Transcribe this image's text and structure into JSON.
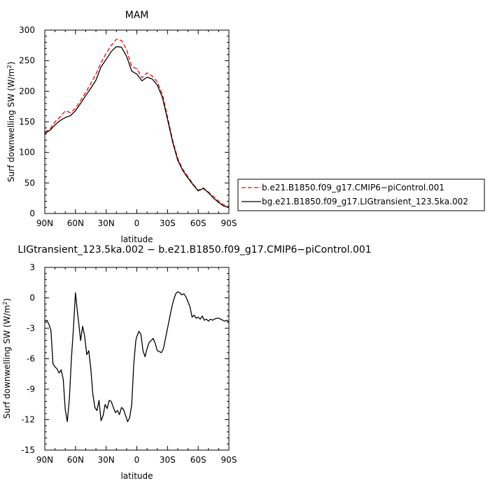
{
  "figure": {
    "title_top": "MAM",
    "title_bottom": "LIGtransient_123.5ka.002 − b.e21.B1850.f09_g17.CMIP6−piControl.001",
    "xlabel": "latitude",
    "ylabel_prefix": "Surf downwelling SW (W/m",
    "ylabel_sup": "2",
    "ylabel_suffix": ")"
  },
  "chart_data": [
    {
      "type": "line",
      "title": "MAM",
      "xlabel": "latitude",
      "ylabel": "Surf downwelling SW (W/m2)",
      "x_ticks": [
        90,
        60,
        30,
        0,
        -30,
        -60,
        -90
      ],
      "x_tick_labels": [
        "90N",
        "60N",
        "30N",
        "0",
        "30S",
        "60S",
        "90S"
      ],
      "xlim": [
        90,
        -90
      ],
      "ylim": [
        0,
        300
      ],
      "y_ticks": [
        0,
        50,
        100,
        150,
        200,
        250,
        300
      ],
      "legend_position": "right",
      "series": [
        {
          "name": "b.e21.B1850.f09_g17.CMIP6−piControl.001",
          "color": "#ff0000",
          "dash": "dashed",
          "x": [
            90,
            85,
            80,
            75,
            70,
            65,
            60,
            55,
            50,
            45,
            40,
            35,
            30,
            25,
            20,
            15,
            10,
            5,
            0,
            -5,
            -10,
            -15,
            -20,
            -25,
            -30,
            -35,
            -40,
            -45,
            -50,
            -55,
            -60,
            -65,
            -70,
            -75,
            -80,
            -85,
            -90
          ],
          "y": [
            133,
            138,
            150,
            158,
            168,
            165,
            172,
            185,
            198,
            213,
            228,
            247,
            262,
            275,
            285,
            283,
            268,
            240,
            237,
            222,
            230,
            225,
            215,
            195,
            158,
            120,
            90,
            72,
            60,
            48,
            38,
            42,
            35,
            28,
            20,
            14,
            12
          ]
        },
        {
          "name": "bg.e21.B1850.f09_g17.LIGtransient_123.5ka.002",
          "color": "#000000",
          "dash": "solid",
          "x": [
            90,
            85,
            80,
            75,
            70,
            65,
            60,
            55,
            50,
            45,
            40,
            35,
            30,
            25,
            20,
            15,
            10,
            5,
            0,
            -5,
            -10,
            -15,
            -20,
            -25,
            -30,
            -35,
            -40,
            -45,
            -50,
            -55,
            -60,
            -65,
            -70,
            -75,
            -80,
            -85,
            -90
          ],
          "y": [
            131,
            136,
            145,
            152,
            157,
            160,
            168,
            180,
            193,
            205,
            218,
            240,
            252,
            265,
            273,
            272,
            257,
            233,
            228,
            217,
            223,
            220,
            210,
            190,
            154,
            117,
            87,
            70,
            58,
            47,
            37,
            41,
            34,
            25,
            18,
            12,
            10
          ]
        }
      ]
    },
    {
      "type": "line",
      "title": "LIGtransient_123.5ka.002 − b.e21.B1850.f09_g17.CMIP6−piControl.001",
      "xlabel": "latitude",
      "ylabel": "Surf downwelling SW (W/m2)",
      "x_ticks": [
        90,
        60,
        30,
        0,
        -30,
        -60,
        -90
      ],
      "x_tick_labels": [
        "90N",
        "60N",
        "30N",
        "0",
        "30S",
        "60S",
        "90S"
      ],
      "xlim": [
        90,
        -90
      ],
      "ylim": [
        -15,
        3
      ],
      "y_ticks": [
        -15,
        -12,
        -9,
        -6,
        -3,
        0,
        3
      ],
      "series": [
        {
          "name": "",
          "color": "#000000",
          "dash": "solid",
          "x": [
            90,
            88,
            86,
            84,
            82,
            80,
            78,
            76,
            74,
            72,
            70,
            68,
            66,
            64,
            62,
            60,
            58,
            57,
            55,
            53,
            51,
            49,
            47,
            45,
            43,
            41,
            39,
            37,
            35,
            33,
            31,
            29,
            27,
            25,
            23,
            21,
            19,
            17,
            15,
            13,
            11,
            9,
            7,
            5,
            3,
            1,
            0,
            -2,
            -4,
            -6,
            -8,
            -10,
            -12,
            -14,
            -16,
            -18,
            -20,
            -22,
            -24,
            -26,
            -28,
            -30,
            -32,
            -34,
            -36,
            -38,
            -40,
            -42,
            -44,
            -46,
            -48,
            -50,
            -52,
            -54,
            -56,
            -58,
            -60,
            -62,
            -64,
            -66,
            -68,
            -70,
            -72,
            -74,
            -76,
            -78,
            -80,
            -82,
            -84,
            -86,
            -88,
            -90
          ],
          "y": [
            -2.3,
            -2.2,
            -2.6,
            -3.2,
            -6.5,
            -6.8,
            -7.0,
            -7.4,
            -7.1,
            -8.0,
            -11.0,
            -12.2,
            -10.0,
            -6.0,
            -3.0,
            0.5,
            -1.5,
            -2.3,
            -4.2,
            -2.8,
            -3.8,
            -5.6,
            -5.2,
            -7.0,
            -9.5,
            -10.8,
            -11.1,
            -10.1,
            -12.1,
            -11.6,
            -10.5,
            -10.9,
            -10.1,
            -10.2,
            -10.8,
            -11.3,
            -11.1,
            -11.5,
            -10.8,
            -11.0,
            -11.6,
            -12.2,
            -11.8,
            -10.5,
            -6.5,
            -4.2,
            -3.8,
            -3.3,
            -3.6,
            -5.2,
            -5.8,
            -5.0,
            -4.4,
            -4.2,
            -4.0,
            -4.5,
            -5.2,
            -5.3,
            -5.4,
            -5.0,
            -4.0,
            -3.0,
            -2.0,
            -1.0,
            -0.2,
            0.4,
            0.6,
            0.5,
            0.3,
            0.4,
            0.1,
            -0.4,
            -0.9,
            -1.9,
            -1.7,
            -2.0,
            -1.9,
            -2.1,
            -1.8,
            -2.2,
            -2.1,
            -2.3,
            -2.1,
            -2.2,
            -2.1,
            -2.0,
            -2.0,
            -2.1,
            -2.2,
            -2.3,
            -2.2,
            -2.4
          ]
        }
      ]
    }
  ]
}
